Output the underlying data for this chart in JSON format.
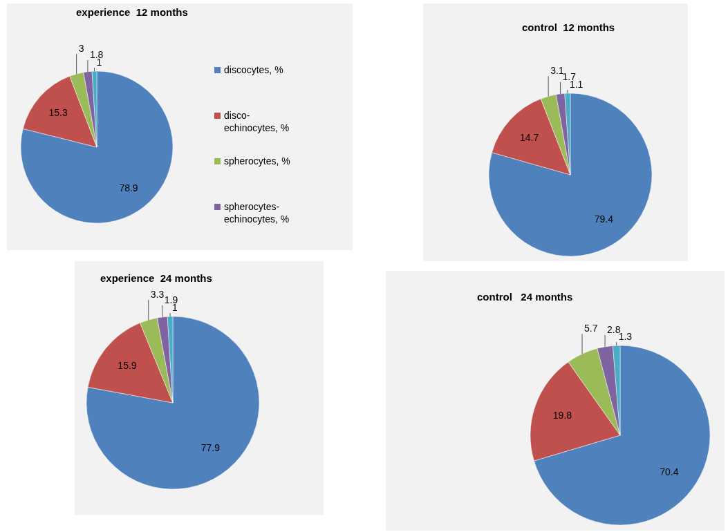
{
  "chart_data": [
    {
      "type": "pie",
      "title": "experience  12 months",
      "categories": [
        "discocytes, %",
        "disco-echinocytes, %",
        "spherocytes, %",
        "spherocytes-echinocytes, %",
        null
      ],
      "values": [
        78.9,
        15.3,
        3,
        1.8,
        1
      ],
      "colors": [
        "#4f81bd",
        "#c0504d",
        "#9bbb59",
        "#8064a2",
        "#4bacc6"
      ],
      "data_labels": true,
      "legend": "right"
    },
    {
      "type": "pie",
      "title": "control  12 months",
      "categories": [
        null,
        null,
        null,
        null,
        null
      ],
      "values": [
        79.4,
        14.7,
        3.1,
        1.7,
        1.1
      ],
      "colors": [
        "#4f81bd",
        "#c0504d",
        "#9bbb59",
        "#8064a2",
        "#4bacc6"
      ],
      "data_labels": true,
      "legend": false
    },
    {
      "type": "pie",
      "title": "experience  24 months",
      "categories": [
        null,
        null,
        null,
        null,
        null
      ],
      "values": [
        77.9,
        15.9,
        3.3,
        1.9,
        1
      ],
      "colors": [
        "#4f81bd",
        "#c0504d",
        "#9bbb59",
        "#8064a2",
        "#4bacc6"
      ],
      "data_labels": true,
      "legend": false
    },
    {
      "type": "pie",
      "title": "control   24 months",
      "categories": [
        null,
        null,
        null,
        null,
        null
      ],
      "values": [
        70.4,
        19.8,
        5.7,
        2.8,
        1.3
      ],
      "colors": [
        "#4f81bd",
        "#c0504d",
        "#9bbb59",
        "#8064a2",
        "#4bacc6"
      ],
      "data_labels": true,
      "legend": false
    }
  ]
}
